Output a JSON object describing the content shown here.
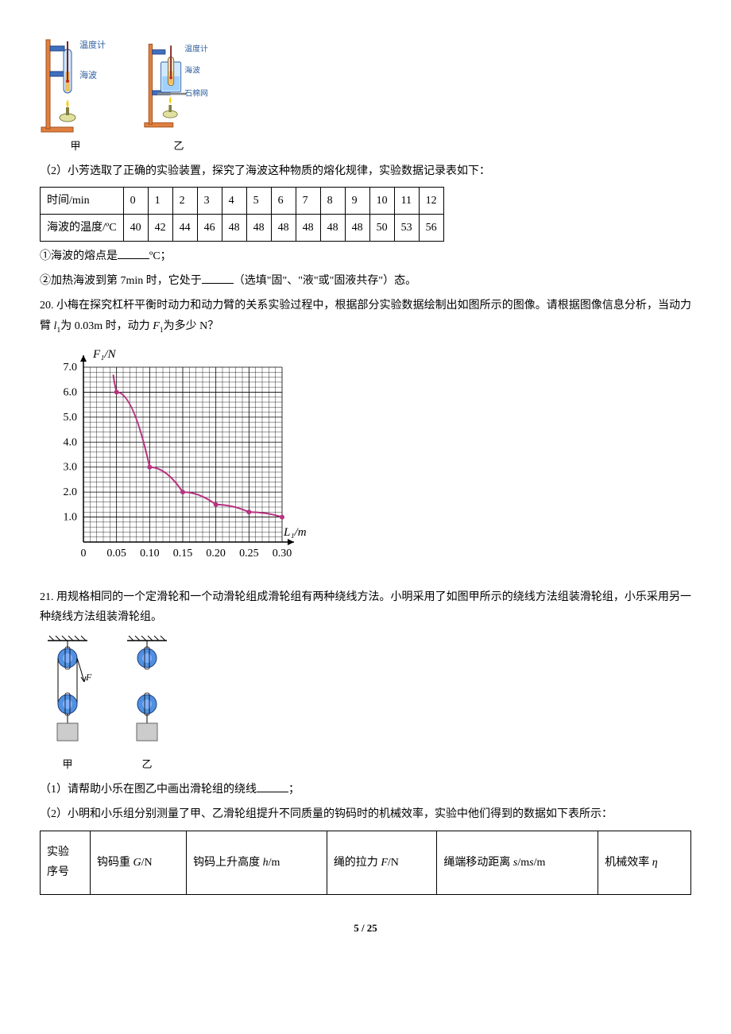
{
  "apparatus": {
    "jia": {
      "label": "甲",
      "thermo": "温度计",
      "sample": "海波"
    },
    "yi": {
      "label": "乙",
      "thermo": "温度计",
      "sample": "海波",
      "mesh": "石棉网"
    }
  },
  "q19_part2_intro": "（2）小芳选取了正确的实验装置，探究了海波这种物质的熔化规律，实验数据记录表如下：",
  "melt_table": {
    "row1_label": "时间/min",
    "row2_label": "海波的温度/ºC",
    "times": [
      "0",
      "1",
      "2",
      "3",
      "4",
      "5",
      "6",
      "7",
      "8",
      "9",
      "10",
      "11",
      "12"
    ],
    "temps": [
      "40",
      "42",
      "44",
      "46",
      "48",
      "48",
      "48",
      "48",
      "48",
      "48",
      "50",
      "53",
      "56"
    ]
  },
  "q19_sub1": "①海波的熔点是",
  "q19_sub1_unit": "ºC；",
  "q19_sub2_a": "②加热海波到第 7min 时，它处于",
  "q19_sub2_b": "（选填\"固\"、\"液\"或\"固液共存\"）态。",
  "q20": "20. 小梅在探究杠杆平衡时动力和动力臂的关系实验过程中，根据部分实验数据绘制出如图所示的图像。请根据图像信息分析，当动力臂 ",
  "q20_l1": "l",
  "q20_l1_sub": "1",
  "q20_mid": "为 0.03m 时，动力 ",
  "q20_f1": "F",
  "q20_f1_sub": "1",
  "q20_end": "为多少 N？",
  "chart": {
    "y_label": "F₁/N",
    "x_label": "L₁/m",
    "y_ticks": [
      "7.0",
      "6.0",
      "5.0",
      "4.0",
      "3.0",
      "2.0",
      "1.0"
    ],
    "x_ticks": [
      "0",
      "0.05",
      "0.10",
      "0.15",
      "0.20",
      "0.25",
      "0.30"
    ],
    "curve_color": "#b83280",
    "grid_color": "#000",
    "data_points": [
      {
        "x": 0.05,
        "y": 6.0
      },
      {
        "x": 0.1,
        "y": 3.0
      },
      {
        "x": 0.15,
        "y": 2.0
      },
      {
        "x": 0.2,
        "y": 1.5
      },
      {
        "x": 0.25,
        "y": 1.2
      },
      {
        "x": 0.3,
        "y": 1.0
      }
    ]
  },
  "q21": "21. 用规格相同的一个定滑轮和一个动滑轮组成滑轮组有两种绕线方法。小明采用了如图甲所示的绕线方法组装滑轮组，小乐采用另一种绕线方法组装滑轮组。",
  "pulley": {
    "jia": "甲",
    "yi": "乙",
    "force": "F"
  },
  "q21_1a": "（1）请帮助小乐在图乙中画出滑轮组的绕线",
  "q21_1b": "；",
  "q21_2": "（2）小明和小乐组分别测量了甲、乙滑轮组提升不同质量的钩码时的机械效率，实验中他们得到的数据如下表所示：",
  "eff_table": {
    "col1a": "实验",
    "col1b": "序号",
    "col2a": "钩码重 ",
    "col2_g": "G",
    "col2b": "/N",
    "col3a": "钩码上升高度 ",
    "col3_h": "h",
    "col3b": "/m",
    "col4a": "绳的拉力 ",
    "col4_f": "F",
    "col4b": "/N",
    "col5a": "绳端移动距离 ",
    "col5_s": "s",
    "col5b": "/m",
    "col5_s2": "s",
    "col5c": "/m",
    "col6a": "机械效率 ",
    "col6_eta": "η"
  },
  "page": "5 / 25"
}
